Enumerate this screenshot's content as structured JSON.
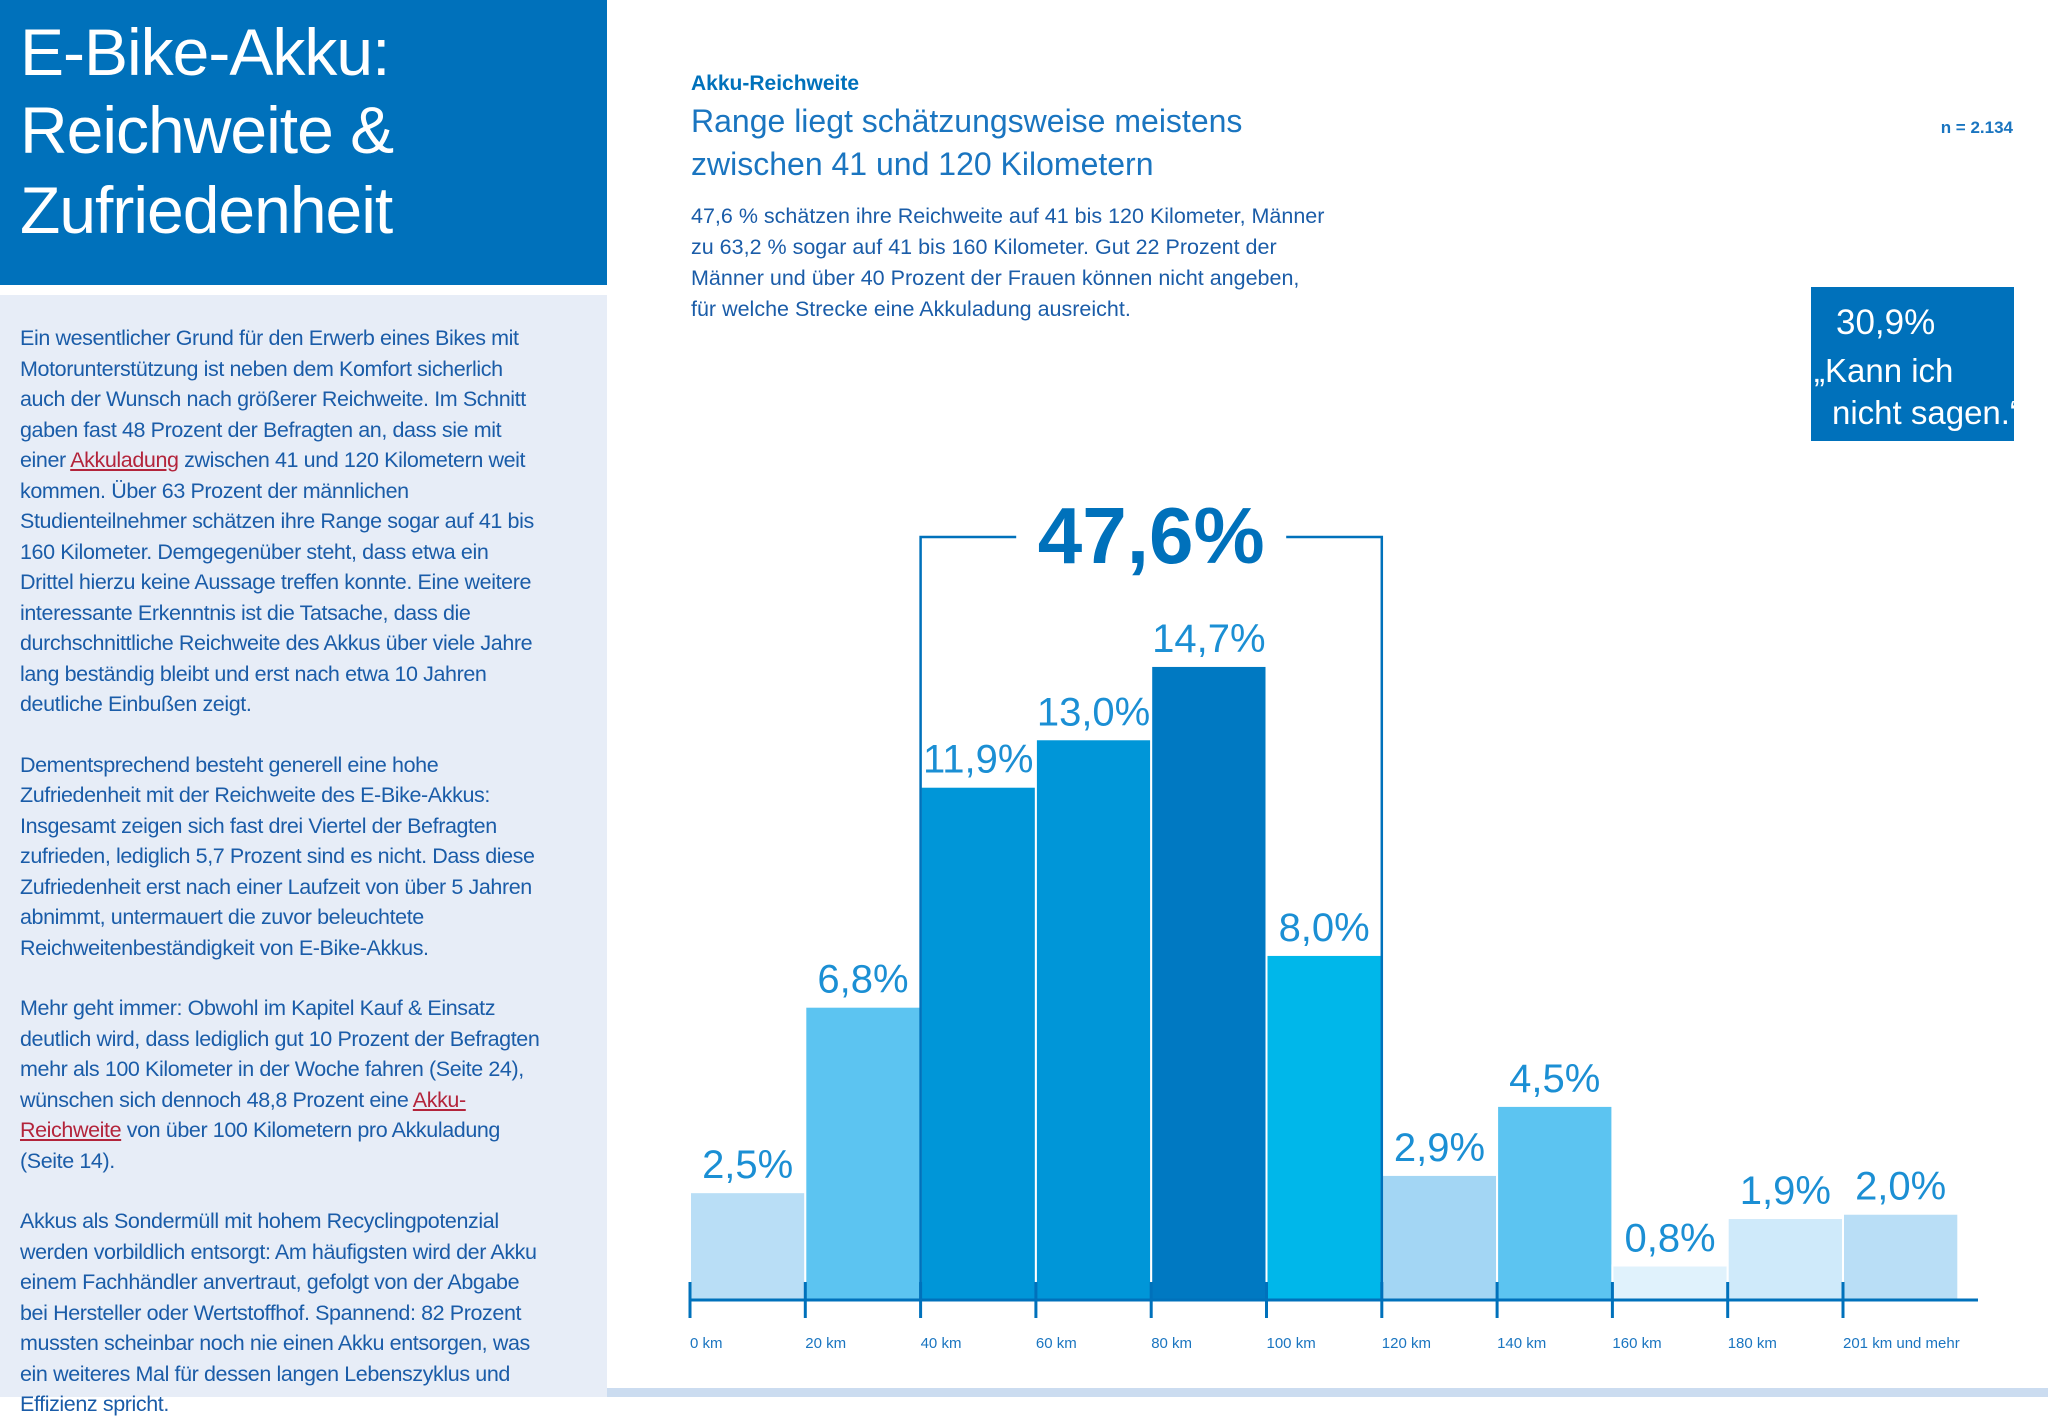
{
  "header": {
    "title_lines": [
      "E-Bike-Akku:",
      "Reichweite &",
      "Zufriedenheit"
    ]
  },
  "sidebar": {
    "paragraphs": [
      [
        "Ein wesentlicher Grund für den Erwerb eines Bikes mit Motorunterstützung ist neben dem Komfort sicherlich auch der Wunsch nach größerer Reichweite. Im Schnitt gaben fast 48 Prozent der Befragten an, dass sie mit einer ",
        "Akkuladung",
        " zwischen 41 und 120 Kilometern weit kommen. Über 63 Prozent der männlichen Studienteilnehmer schätzen ihre Range sogar auf 41 bis 160 Kilometer. Demgegenüber steht, dass etwa ein Drittel hierzu keine Aussage treffen konnte. Eine weitere interessante Erkenntnis ist die Tatsache, dass die durchschnittliche Reichweite des Akkus über viele Jahre lang beständig bleibt und erst nach etwa 10 Jahren deutliche Einbußen zeigt."
      ],
      [
        "Dementsprechend besteht generell eine hohe Zufriedenheit mit der Reichweite des E-Bike-Akkus: Insgesamt zeigen sich fast drei Viertel der Befragten zufrieden, lediglich 5,7 Prozent sind es nicht. Dass diese Zufriedenheit erst nach einer Laufzeit von über 5 Jahren abnimmt, untermauert die zuvor beleuchtete Reichweitenbeständigkeit von E-Bike-Akkus."
      ],
      [
        "Mehr geht immer: Obwohl im Kapitel Kauf & Einsatz deutlich wird, dass lediglich gut 10 Prozent der Befragten mehr als 100 Kilometer in der Woche fahren (Seite 24), wünschen sich dennoch 48,8 Prozent eine ",
        "Akku-Reichweite",
        " von über 100 Kilometern pro Akkuladung (Seite 14)."
      ],
      [
        "Akkus als Sondermüll mit hohem Recyclingpotenzial werden vorbildlich entsorgt: Am häufigsten wird der Akku einem Fachhändler anvertraut, gefolgt von der Abgabe bei Hersteller oder Wertstoffhof. Spannend: 82 Prozent mussten scheinbar noch nie einen Akku entsorgen, was ein weiteres Mal für dessen langen Lebenszyklus und Effizienz spricht."
      ]
    ]
  },
  "chart_data": {
    "type": "bar",
    "title": "Akku-Reichweite",
    "subtitle_lines": [
      "Range liegt schätzungsweise meistens",
      "zwischen 41 und 120 Kilometern"
    ],
    "description_lines": [
      "47,6 % schätzen ihre Reichweite auf 41 bis 120 Kilometer, Männer",
      "zu 63,2 % sogar auf 41 bis 160 Kilometer. Gut 22 Prozent der",
      "Männer und über 40 Prozent der Frauen können nicht angeben,",
      "für welche Strecke eine Akkuladung ausreicht."
    ],
    "sample_size": "n = 2.134",
    "callout": {
      "value_label": "30,9%",
      "text_lines": [
        "„Kann ich",
        "nicht sagen.“"
      ]
    },
    "bracket_label": "47,6%",
    "categories": [
      "0 km",
      "20 km",
      "40 km",
      "60 km",
      "80 km",
      "100 km",
      "120 km",
      "140 km",
      "160 km",
      "180 km",
      "201 km und mehr"
    ],
    "values": [
      2.5,
      6.8,
      11.9,
      13.0,
      14.7,
      8.0,
      2.9,
      4.5,
      0.8,
      1.9,
      2.0
    ],
    "value_labels": [
      "2,5%",
      "6,8%",
      "11,9%",
      "13,0%",
      "14,7%",
      "8,0%",
      "2,9%",
      "4,5%",
      "0,8%",
      "1,9%",
      "2,0%"
    ],
    "colors": [
      "#b9def6",
      "#5cc4f1",
      "#0096d8",
      "#0096d8",
      "#0079c2",
      "#00b7ea",
      "#a3d6f4",
      "#5cc4f1",
      "#e0f2fc",
      "#cfeafa",
      "#b9def6"
    ],
    "ylim": [
      0,
      15
    ]
  }
}
